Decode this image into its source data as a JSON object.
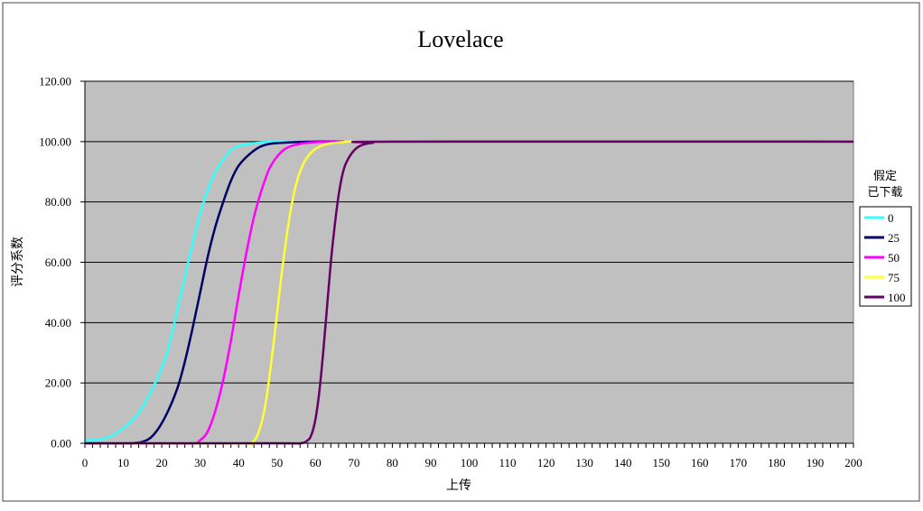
{
  "chart_data": {
    "type": "line",
    "title": "Lovelace",
    "xlabel": "上传",
    "ylabel": "评分系数",
    "xlim": [
      0,
      200
    ],
    "ylim": [
      0,
      120
    ],
    "x_ticks": [
      "0",
      "10",
      "20",
      "30",
      "40",
      "50",
      "60",
      "70",
      "80",
      "90",
      "100",
      "110",
      "120",
      "130",
      "140",
      "150",
      "160",
      "170",
      "180",
      "190",
      "200"
    ],
    "y_ticks": [
      "0.00",
      "20.00",
      "40.00",
      "60.00",
      "80.00",
      "100.00",
      "120.00"
    ],
    "legend_title_line1": "假定",
    "legend_title_line2": "已下载",
    "legend_position": "right",
    "grid": "horizontal",
    "plot_background": "#c0c0c0",
    "x_shown_every": 1,
    "series": [
      {
        "name": "0",
        "color": "#33ffff",
        "x": [
          0,
          5,
          10,
          15,
          20,
          22,
          24,
          26,
          28,
          30,
          32,
          34,
          36,
          38,
          40,
          45,
          50,
          60,
          80,
          200
        ],
        "y": [
          1,
          1.5,
          5,
          12,
          25,
          33,
          44,
          55,
          66,
          76,
          84,
          90,
          94,
          97,
          98.5,
          99.6,
          100,
          100,
          100,
          100
        ]
      },
      {
        "name": "25",
        "color": "#000066",
        "x": [
          0,
          10,
          15,
          18,
          21,
          24,
          26,
          28,
          30,
          32,
          34,
          36,
          38,
          40,
          43,
          46,
          50,
          60,
          80,
          200
        ],
        "y": [
          0,
          0,
          0.5,
          3,
          9,
          18,
          27,
          38,
          50,
          62,
          72,
          80,
          87,
          92,
          96,
          98.5,
          99.5,
          100,
          100,
          100
        ]
      },
      {
        "name": "50",
        "color": "#ff00ff",
        "x": [
          0,
          20,
          28,
          30,
          32,
          34,
          36,
          38,
          40,
          42,
          44,
          46,
          48,
          50,
          52,
          55,
          60,
          70,
          80,
          200
        ],
        "y": [
          0,
          0,
          0,
          1,
          4,
          11,
          21,
          34,
          49,
          63,
          75,
          84,
          91,
          95,
          97.5,
          99,
          99.8,
          100,
          100,
          100
        ]
      },
      {
        "name": "75",
        "color": "#ffff33",
        "x": [
          0,
          40,
          43,
          45,
          47,
          49,
          51,
          53,
          55,
          57,
          59,
          61,
          63,
          66,
          70,
          80,
          200
        ],
        "y": [
          0,
          0,
          0,
          3,
          13,
          32,
          54,
          73,
          86,
          93,
          96.5,
          98.3,
          99.2,
          99.7,
          100,
          100,
          100
        ]
      },
      {
        "name": "100",
        "color": "#660066",
        "x": [
          0,
          50,
          56,
          58,
          59,
          60,
          61,
          62,
          63,
          64,
          65,
          66,
          67,
          68,
          70,
          72,
          75,
          80,
          200
        ],
        "y": [
          0,
          0,
          0,
          1,
          3,
          8,
          17,
          30,
          45,
          60,
          72,
          82,
          89,
          93,
          97,
          98.8,
          99.6,
          100,
          100
        ]
      }
    ]
  }
}
